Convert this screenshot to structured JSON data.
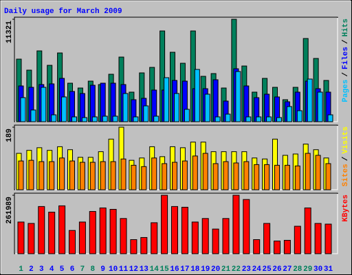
{
  "title": "Daily usage for March 2009",
  "title_color": "#0000ff",
  "legend_separator": "/",
  "chart_data": [
    {
      "type": "bar",
      "ylim": [
        0,
        11321
      ],
      "yticks": [
        11321
      ],
      "series": [
        {
          "name": "Pages",
          "color": "#00c0ff",
          "values": [
            2660,
            1292,
            3800,
            760,
            2736,
            532,
            456,
            532,
            608,
            608,
            3116,
            532,
            1748,
            608,
            4864,
            3116,
            1368,
            5776,
            3040,
            532,
            836,
            5548,
            532,
            532,
            532,
            456,
            1672,
            1216,
            4712,
            3268,
            760
          ]
        },
        {
          "name": "Files",
          "color": "#0000ff",
          "values": [
            3951,
            3800,
            4104,
            4180,
            4788,
            3344,
            3116,
            4028,
            4256,
            4256,
            4104,
            2432,
            2584,
            3496,
            3496,
            4560,
            4484,
            3648,
            3648,
            4636,
            2280,
            5852,
            3952,
            2660,
            3040,
            2736,
            2204,
            3268,
            4484,
            3648,
            3268
          ]
        },
        {
          "name": "Hits",
          "color": "#00805c",
          "values": [
            6915,
            5698,
            7826,
            6230,
            7598,
            4255,
            3723,
            4483,
            4103,
            5243,
            7142,
            3267,
            5395,
            6002,
            10029,
            7674,
            6458,
            10029,
            5015,
            5319,
            3723,
            11321,
            6154,
            3267,
            4787,
            3799,
            2431,
            3799,
            9194,
            6990,
            4559
          ]
        }
      ]
    },
    {
      "type": "bar",
      "ylim": [
        0,
        189
      ],
      "yticks": [
        189
      ],
      "series": [
        {
          "name": "Sites",
          "color": "#ff8000",
          "values": [
            87,
            89,
            85,
            85,
            96,
            87,
            83,
            83,
            85,
            85,
            93,
            74,
            70,
            96,
            79,
            83,
            87,
            102,
            110,
            79,
            85,
            81,
            85,
            76,
            76,
            74,
            74,
            72,
            110,
            104,
            79
          ]
        },
        {
          "name": "Visits",
          "color": "#ffff00",
          "values": [
            110,
            119,
            127,
            119,
            130,
            121,
            98,
            98,
            115,
            153,
            189,
            89,
            96,
            130,
            100,
            130,
            127,
            144,
            144,
            115,
            115,
            115,
            115,
            96,
            93,
            153,
            104,
            108,
            138,
            121,
            96
          ]
        }
      ]
    },
    {
      "type": "bar",
      "ylim": [
        0,
        261989
      ],
      "yticks": [
        261989
      ],
      "categories": [
        "1",
        "2",
        "3",
        "4",
        "5",
        "6",
        "7",
        "8",
        "9",
        "10",
        "11",
        "12",
        "13",
        "14",
        "15",
        "16",
        "17",
        "18",
        "19",
        "20",
        "21",
        "22",
        "23",
        "24",
        "25",
        "26",
        "27",
        "28",
        "29",
        "30",
        "31"
      ],
      "category_colors": [
        "#00805c",
        "#0000ff",
        "#0000ff",
        "#0000ff",
        "#0000ff",
        "#0000ff",
        "#00805c",
        "#00805c",
        "#0000ff",
        "#0000ff",
        "#0000ff",
        "#0000ff",
        "#0000ff",
        "#00805c",
        "#00805c",
        "#0000ff",
        "#0000ff",
        "#0000ff",
        "#0000ff",
        "#0000ff",
        "#00805c",
        "#00805c",
        "#0000ff",
        "#0000ff",
        "#0000ff",
        "#0000ff",
        "#0000ff",
        "#00805c",
        "#00805c",
        "#0000ff",
        "#0000ff"
      ],
      "series": [
        {
          "name": "KBytes",
          "color": "#ff0000",
          "values": [
            142000,
            135700,
            211500,
            186200,
            214600,
            104200,
            142000,
            189400,
            205200,
            198900,
            157800,
            63100,
            72600,
            138900,
            261989,
            211500,
            208300,
            142000,
            157800,
            110500,
            157800,
            261989,
            243000,
            63100,
            135700,
            56800,
            60000,
            123100,
            205200,
            135700,
            132600
          ]
        }
      ]
    }
  ]
}
